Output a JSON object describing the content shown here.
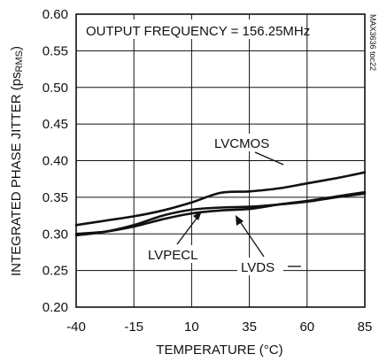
{
  "chart_data": {
    "type": "line",
    "title": "OUTPUT FREQUENCY = 156.25MHz",
    "xlabel": "TEMPERATURE (°C)",
    "ylabel": "INTEGRATED PHASE JITTER (psRMS)",
    "figure_id": "MAX3636 toc22",
    "xlim": [
      -40,
      85
    ],
    "ylim": [
      0.2,
      0.6
    ],
    "x_ticks": [
      "-40",
      "-15",
      "10",
      "35",
      "60",
      "85"
    ],
    "x_tick_values": [
      -40,
      -15,
      10,
      35,
      60,
      85
    ],
    "y_ticks": [
      "0.20",
      "0.25",
      "0.30",
      "0.35",
      "0.40",
      "0.45",
      "0.50",
      "0.55",
      "0.60"
    ],
    "y_tick_values": [
      0.2,
      0.25,
      0.3,
      0.35,
      0.4,
      0.45,
      0.5,
      0.55,
      0.6
    ],
    "grid": true,
    "series": [
      {
        "name": "LVCMOS",
        "x": [
          -40,
          -27.5,
          -15,
          -2.5,
          10,
          22.5,
          35,
          47.5,
          60,
          72.5,
          85
        ],
        "y": [
          0.312,
          0.318,
          0.324,
          0.332,
          0.343,
          0.356,
          0.358,
          0.362,
          0.369,
          0.376,
          0.384
        ]
      },
      {
        "name": "LVPECL",
        "x": [
          -40,
          -27.5,
          -15,
          -2.5,
          10,
          22.5,
          35,
          47.5,
          60,
          72.5,
          85
        ],
        "y": [
          0.3,
          0.303,
          0.31,
          0.32,
          0.328,
          0.332,
          0.334,
          0.34,
          0.345,
          0.351,
          0.357
        ]
      },
      {
        "name": "LVDS",
        "x": [
          -40,
          -27.5,
          -15,
          -2.5,
          10,
          22.5,
          35,
          47.5,
          60,
          72.5,
          85
        ],
        "y": [
          0.298,
          0.303,
          0.312,
          0.325,
          0.333,
          0.336,
          0.337,
          0.34,
          0.344,
          0.35,
          0.355
        ]
      }
    ]
  }
}
